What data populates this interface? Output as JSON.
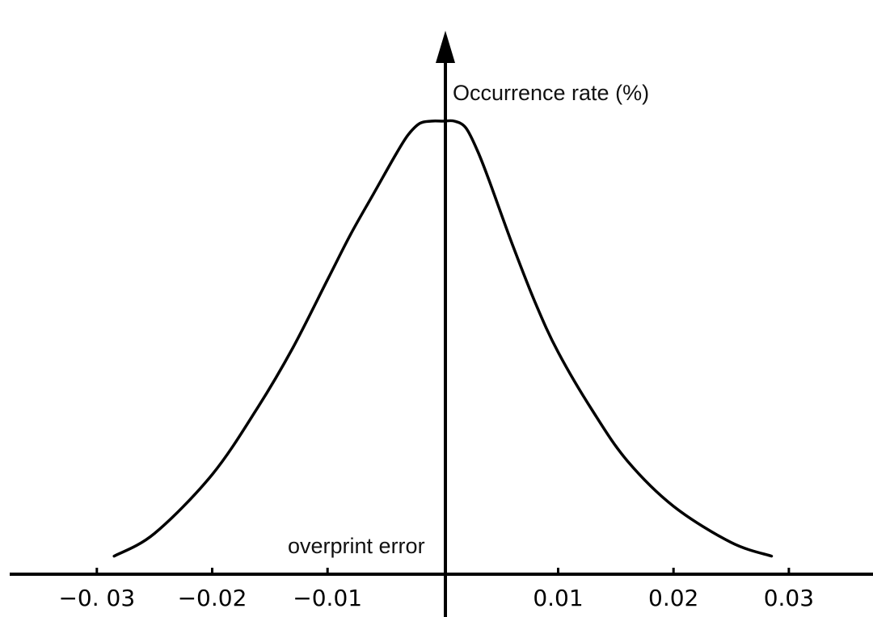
{
  "chart_data": {
    "type": "line",
    "title": "",
    "xlabel": "overprint error",
    "ylabel": "Occurrence rate (%)",
    "x_tick_labels": [
      "−0. 03",
      "−0.02",
      "−0.01",
      "0.01",
      "0.02",
      "0.03"
    ],
    "x_ticks": [
      -0.03,
      -0.02,
      -0.01,
      0.01,
      0.02,
      0.03
    ],
    "xlim": [
      -0.0384,
      0.0373
    ],
    "ylim": [
      0,
      1.1
    ],
    "grid": false,
    "legend": "none",
    "series": [
      {
        "x": [
          -0.0285,
          -0.025,
          -0.02,
          -0.016,
          -0.013,
          -0.01,
          -0.008,
          -0.006,
          -0.004,
          -0.003,
          -0.002,
          -0.001,
          0.0,
          0.001,
          0.002,
          0.003,
          0.004,
          0.006,
          0.008,
          0.01,
          0.013,
          0.016,
          0.02,
          0.025,
          0.0285
        ],
        "y": [
          0.04,
          0.09,
          0.22,
          0.37,
          0.5,
          0.65,
          0.75,
          0.84,
          0.93,
          0.97,
          0.995,
          1.0,
          1.0,
          1.0,
          0.985,
          0.935,
          0.87,
          0.73,
          0.6,
          0.49,
          0.36,
          0.25,
          0.15,
          0.07,
          0.04
        ]
      }
    ],
    "colors": {
      "axis": "#000000",
      "curve": "#000000",
      "background": "#ffffff"
    }
  }
}
